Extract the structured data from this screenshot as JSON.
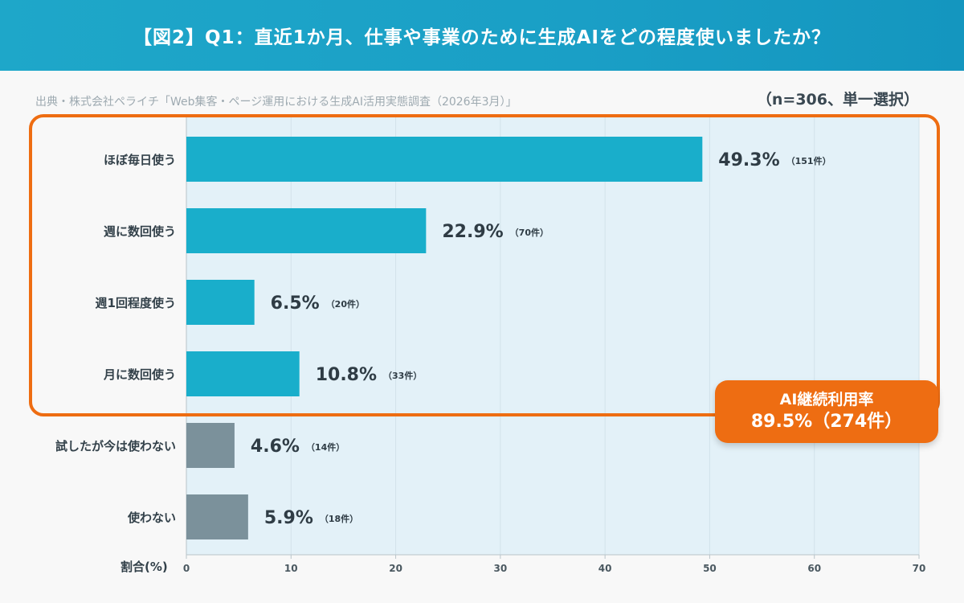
{
  "header": {
    "title": "【図2】Q1：直近1か月、仕事や事業のために生成AIをどの程度使いましたか？"
  },
  "source_note": "出典・株式会社ペライチ「Web集客・ページ運用における生成AI活用実態調査（2026年3月）」",
  "sample_note": "（n=306、単一選択）",
  "callout": {
    "line1": "AI継続利用率",
    "line2": "89.5%（274件）"
  },
  "chart_data": {
    "type": "bar",
    "orientation": "horizontal",
    "categories": [
      "ほぼ毎日使う",
      "週に数回使う",
      "週1回程度使う",
      "月に数回使う",
      "試したが今は使わない",
      "使わない"
    ],
    "values": [
      49.3,
      22.9,
      6.5,
      10.8,
      4.6,
      5.9
    ],
    "value_labels": [
      "49.3%",
      "22.9%",
      "6.5%",
      "10.8%",
      "4.6%",
      "5.9%"
    ],
    "count_labels": [
      "（151件）",
      "（70件）",
      "（20件）",
      "（33件）",
      "（14件）",
      "（18件）"
    ],
    "xlabel": "割合(%)",
    "xlim": [
      0,
      70
    ],
    "xticks": [
      0,
      10,
      20,
      30,
      40,
      50,
      60,
      70
    ],
    "grid": true,
    "highlighted_group": [
      0,
      1,
      2,
      3
    ],
    "colors": {
      "active": "#19aecb",
      "inactive": "#7b919b",
      "highlight_border": "#ee6d12",
      "plot_bg": "#e3f1f8"
    }
  }
}
